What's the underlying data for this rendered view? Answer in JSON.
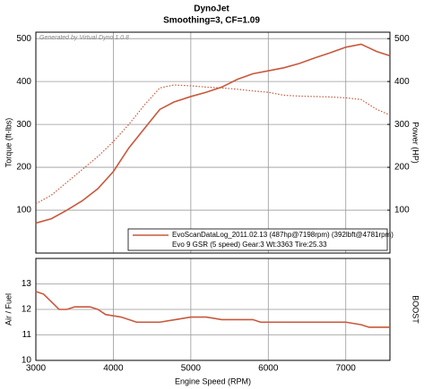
{
  "chart_data": [
    {
      "type": "line",
      "title": "DynoJet",
      "subtitle": "Smoothing=3, CF=1.09",
      "annotation": "Generated by Virtual Dyno 1.0.8",
      "ylabel": "Torque (ft-lbs)",
      "y2label": "Power (HP)",
      "x": [
        3000,
        3200,
        3400,
        3600,
        3800,
        4000,
        4200,
        4400,
        4600,
        4781,
        5000,
        5200,
        5400,
        5600,
        5800,
        6000,
        6200,
        6400,
        6600,
        6800,
        7000,
        7198,
        7400,
        7570
      ],
      "series": [
        {
          "name": "EvoScanDataLog_2011.02.13 (487hp@7198rpm) (392lbft@4781rpm)",
          "color": "#c8583c",
          "style": "solid",
          "axis": "y2",
          "values": [
            70,
            80,
            100,
            122,
            150,
            190,
            245,
            290,
            335,
            352,
            365,
            375,
            387,
            405,
            418,
            425,
            432,
            442,
            455,
            467,
            480,
            487,
            470,
            460
          ]
        },
        {
          "color": "#c8583c",
          "style": "dotted",
          "values": [
            115,
            135,
            165,
            195,
            225,
            260,
            300,
            345,
            385,
            392,
            390,
            387,
            385,
            382,
            378,
            375,
            368,
            366,
            365,
            364,
            362,
            358,
            335,
            322
          ]
        }
      ],
      "legend_note": "Evo 9 GSR (5 speed) Gear:3 Wt:3363 Tire:25.33",
      "xlim": [
        3000,
        7570
      ],
      "xticks": [
        3000,
        4000,
        5000,
        6000,
        7000
      ],
      "ylim": [
        0,
        515
      ],
      "yticks": [
        100,
        200,
        300,
        400,
        500
      ],
      "y2lim": [
        0,
        515
      ],
      "y2ticks": [
        100,
        200,
        300,
        400,
        500
      ],
      "grid": true
    },
    {
      "type": "line",
      "ylabel": "Air / Fuel",
      "y2label": "BOOST",
      "xlabel": "Engine Speed (RPM)",
      "x": [
        3000,
        3100,
        3200,
        3300,
        3400,
        3500,
        3700,
        3800,
        3900,
        4100,
        4300,
        4600,
        4800,
        5000,
        5200,
        5400,
        5800,
        5900,
        6500,
        7000,
        7200,
        7300,
        7570
      ],
      "series": [
        {
          "color": "#c8583c",
          "style": "solid",
          "values": [
            12.7,
            12.6,
            12.3,
            12.0,
            12.0,
            12.1,
            12.1,
            12.0,
            11.8,
            11.7,
            11.5,
            11.5,
            11.6,
            11.7,
            11.7,
            11.6,
            11.6,
            11.5,
            11.5,
            11.5,
            11.4,
            11.3,
            11.3
          ]
        }
      ],
      "xlim": [
        3000,
        7570
      ],
      "xticks": [
        3000,
        4000,
        5000,
        6000,
        7000
      ],
      "ylim": [
        10,
        14
      ],
      "yticks": [
        10,
        11,
        12,
        13
      ],
      "grid": true
    }
  ]
}
